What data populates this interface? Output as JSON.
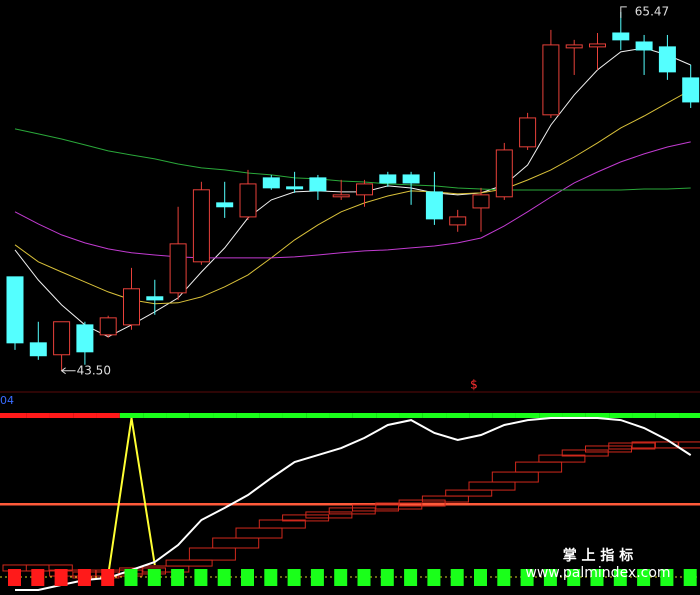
{
  "chart_data": [
    {
      "type": "candlestick",
      "ylim": [
        42.2,
        66.2
      ],
      "up_color": "#e8413a",
      "down_color": "#54ffff",
      "open": [
        49.25,
        45.21,
        44.48,
        46.31,
        45.7,
        46.31,
        48.03,
        48.27,
        50.17,
        53.78,
        52.92,
        55.31,
        54.76,
        55.31,
        54.15,
        54.27,
        55.49,
        55.49,
        54.45,
        52.43,
        53.47,
        54.15,
        57.21,
        59.17,
        63.27,
        63.33,
        64.18,
        63.63,
        63.33,
        61.43
      ],
      "high": [
        49.25,
        46.5,
        46.5,
        46.5,
        46.87,
        49.8,
        49.07,
        53.54,
        55.07,
        55.07,
        55.8,
        55.49,
        55.68,
        55.49,
        55.19,
        55.19,
        55.68,
        55.68,
        55.68,
        53.35,
        54.7,
        57.45,
        59.29,
        64.37,
        63.76,
        64.18,
        65.47,
        64.06,
        64.06,
        62.23
      ],
      "low": [
        44.78,
        44.17,
        43.5,
        43.87,
        45.52,
        46.01,
        46.93,
        47.84,
        49.99,
        52.86,
        52.74,
        54.58,
        54.39,
        53.96,
        53.96,
        53.54,
        54.76,
        53.66,
        52.43,
        52.01,
        52.01,
        53.96,
        57.02,
        58.98,
        61.61,
        61.92,
        63.14,
        61.61,
        61.31,
        59.59
      ],
      "close": [
        45.21,
        44.42,
        46.5,
        44.66,
        46.74,
        48.52,
        47.84,
        51.27,
        54.58,
        53.54,
        54.94,
        54.7,
        54.64,
        54.52,
        54.27,
        54.94,
        55.0,
        55.0,
        52.8,
        52.92,
        54.27,
        57.02,
        58.98,
        63.45,
        63.45,
        63.51,
        63.76,
        63.14,
        61.8,
        59.96
      ],
      "lines": [
        {
          "color": "#f0f0f0",
          "values": [
            50.9,
            49.06,
            47.53,
            46.31,
            45.58,
            46.31,
            47.11,
            47.96,
            49.55,
            51.02,
            52.86,
            53.96,
            54.45,
            54.51,
            54.45,
            54.45,
            54.82,
            54.69,
            54.39,
            54.27,
            54.39,
            54.88,
            56.1,
            58.55,
            60.39,
            61.92,
            63.02,
            63.26,
            62.83,
            62.22
          ]
        },
        {
          "color": "#d9c13a",
          "values": [
            51.21,
            50.17,
            49.55,
            48.94,
            48.33,
            47.84,
            47.6,
            47.66,
            48.02,
            48.64,
            49.37,
            50.41,
            51.51,
            52.43,
            53.23,
            53.78,
            54.2,
            54.51,
            54.45,
            54.33,
            54.39,
            54.63,
            55.18,
            55.8,
            56.59,
            57.45,
            58.37,
            59.1,
            59.9,
            60.69
          ]
        },
        {
          "color": "#c23bd1",
          "values": [
            53.23,
            52.49,
            51.82,
            51.33,
            50.96,
            50.72,
            50.59,
            50.47,
            50.41,
            50.41,
            50.41,
            50.41,
            50.47,
            50.59,
            50.72,
            50.84,
            50.9,
            51.02,
            51.14,
            51.33,
            51.63,
            52.37,
            53.23,
            54.14,
            55.0,
            55.67,
            56.29,
            56.78,
            57.2,
            57.51
          ]
        },
        {
          "color": "#2aa83a",
          "values": [
            58.31,
            58.0,
            57.69,
            57.33,
            56.96,
            56.71,
            56.47,
            56.16,
            55.92,
            55.8,
            55.61,
            55.49,
            55.31,
            55.25,
            55.12,
            55.06,
            54.94,
            54.88,
            54.82,
            54.69,
            54.63,
            54.57,
            54.57,
            54.57,
            54.57,
            54.57,
            54.57,
            54.63,
            54.63,
            54.69
          ]
        }
      ],
      "annotations": [
        {
          "text": "65.47"
        },
        {
          "text": "43.50"
        }
      ],
      "marker": "$"
    },
    {
      "type": "indicator",
      "label": "04",
      "ylim": [
        0,
        100
      ],
      "level": 49,
      "level_color": "#ff5a3a",
      "signal": [
        0,
        0,
        0,
        0,
        0,
        1,
        1,
        1,
        1,
        1,
        1,
        1,
        1,
        1,
        1,
        1,
        1,
        1,
        1,
        1,
        1,
        1,
        1,
        1,
        1,
        1,
        1,
        1,
        1,
        1
      ],
      "signal_colors": [
        "#ff1a1a",
        "#1aff1a"
      ],
      "line": {
        "color": "#ffffff",
        "values": [
          0,
          0,
          2.9,
          5.7,
          6.9,
          11.4,
          16,
          25.7,
          40,
          46.9,
          54.3,
          64,
          73.1,
          77.1,
          81.1,
          86.9,
          94.3,
          97.1,
          89.7,
          85.7,
          88.6,
          94.3,
          97.1,
          98.3,
          98.3,
          98.3,
          97.1,
          92.6,
          85.7,
          77.1
        ]
      },
      "steps": {
        "color": "#d0281c",
        "values": [
          14.3,
          11.4,
          10.3,
          10.3,
          11.4,
          12.6,
          13.7,
          17.1,
          24,
          29.7,
          35.4,
          40,
          42.9,
          44.6,
          46.9,
          48.6,
          49.7,
          51.4,
          53.7,
          57.1,
          61.7,
          67.4,
          73.1,
          77.1,
          80,
          82.3,
          84,
          84.6,
          84.6,
          83.4
        ]
      },
      "spike": {
        "color": "#ffff33",
        "values": [
          null,
          null,
          null,
          null,
          8.6,
          98.3,
          14.3,
          null,
          null,
          null,
          null,
          null,
          null,
          null,
          null,
          null,
          null,
          null,
          null,
          null,
          null,
          null,
          null,
          null,
          null,
          null,
          null,
          null,
          null,
          null
        ]
      }
    }
  ],
  "watermark": {
    "title": "掌 上 指 标",
    "url": "www.palmindex.com"
  }
}
